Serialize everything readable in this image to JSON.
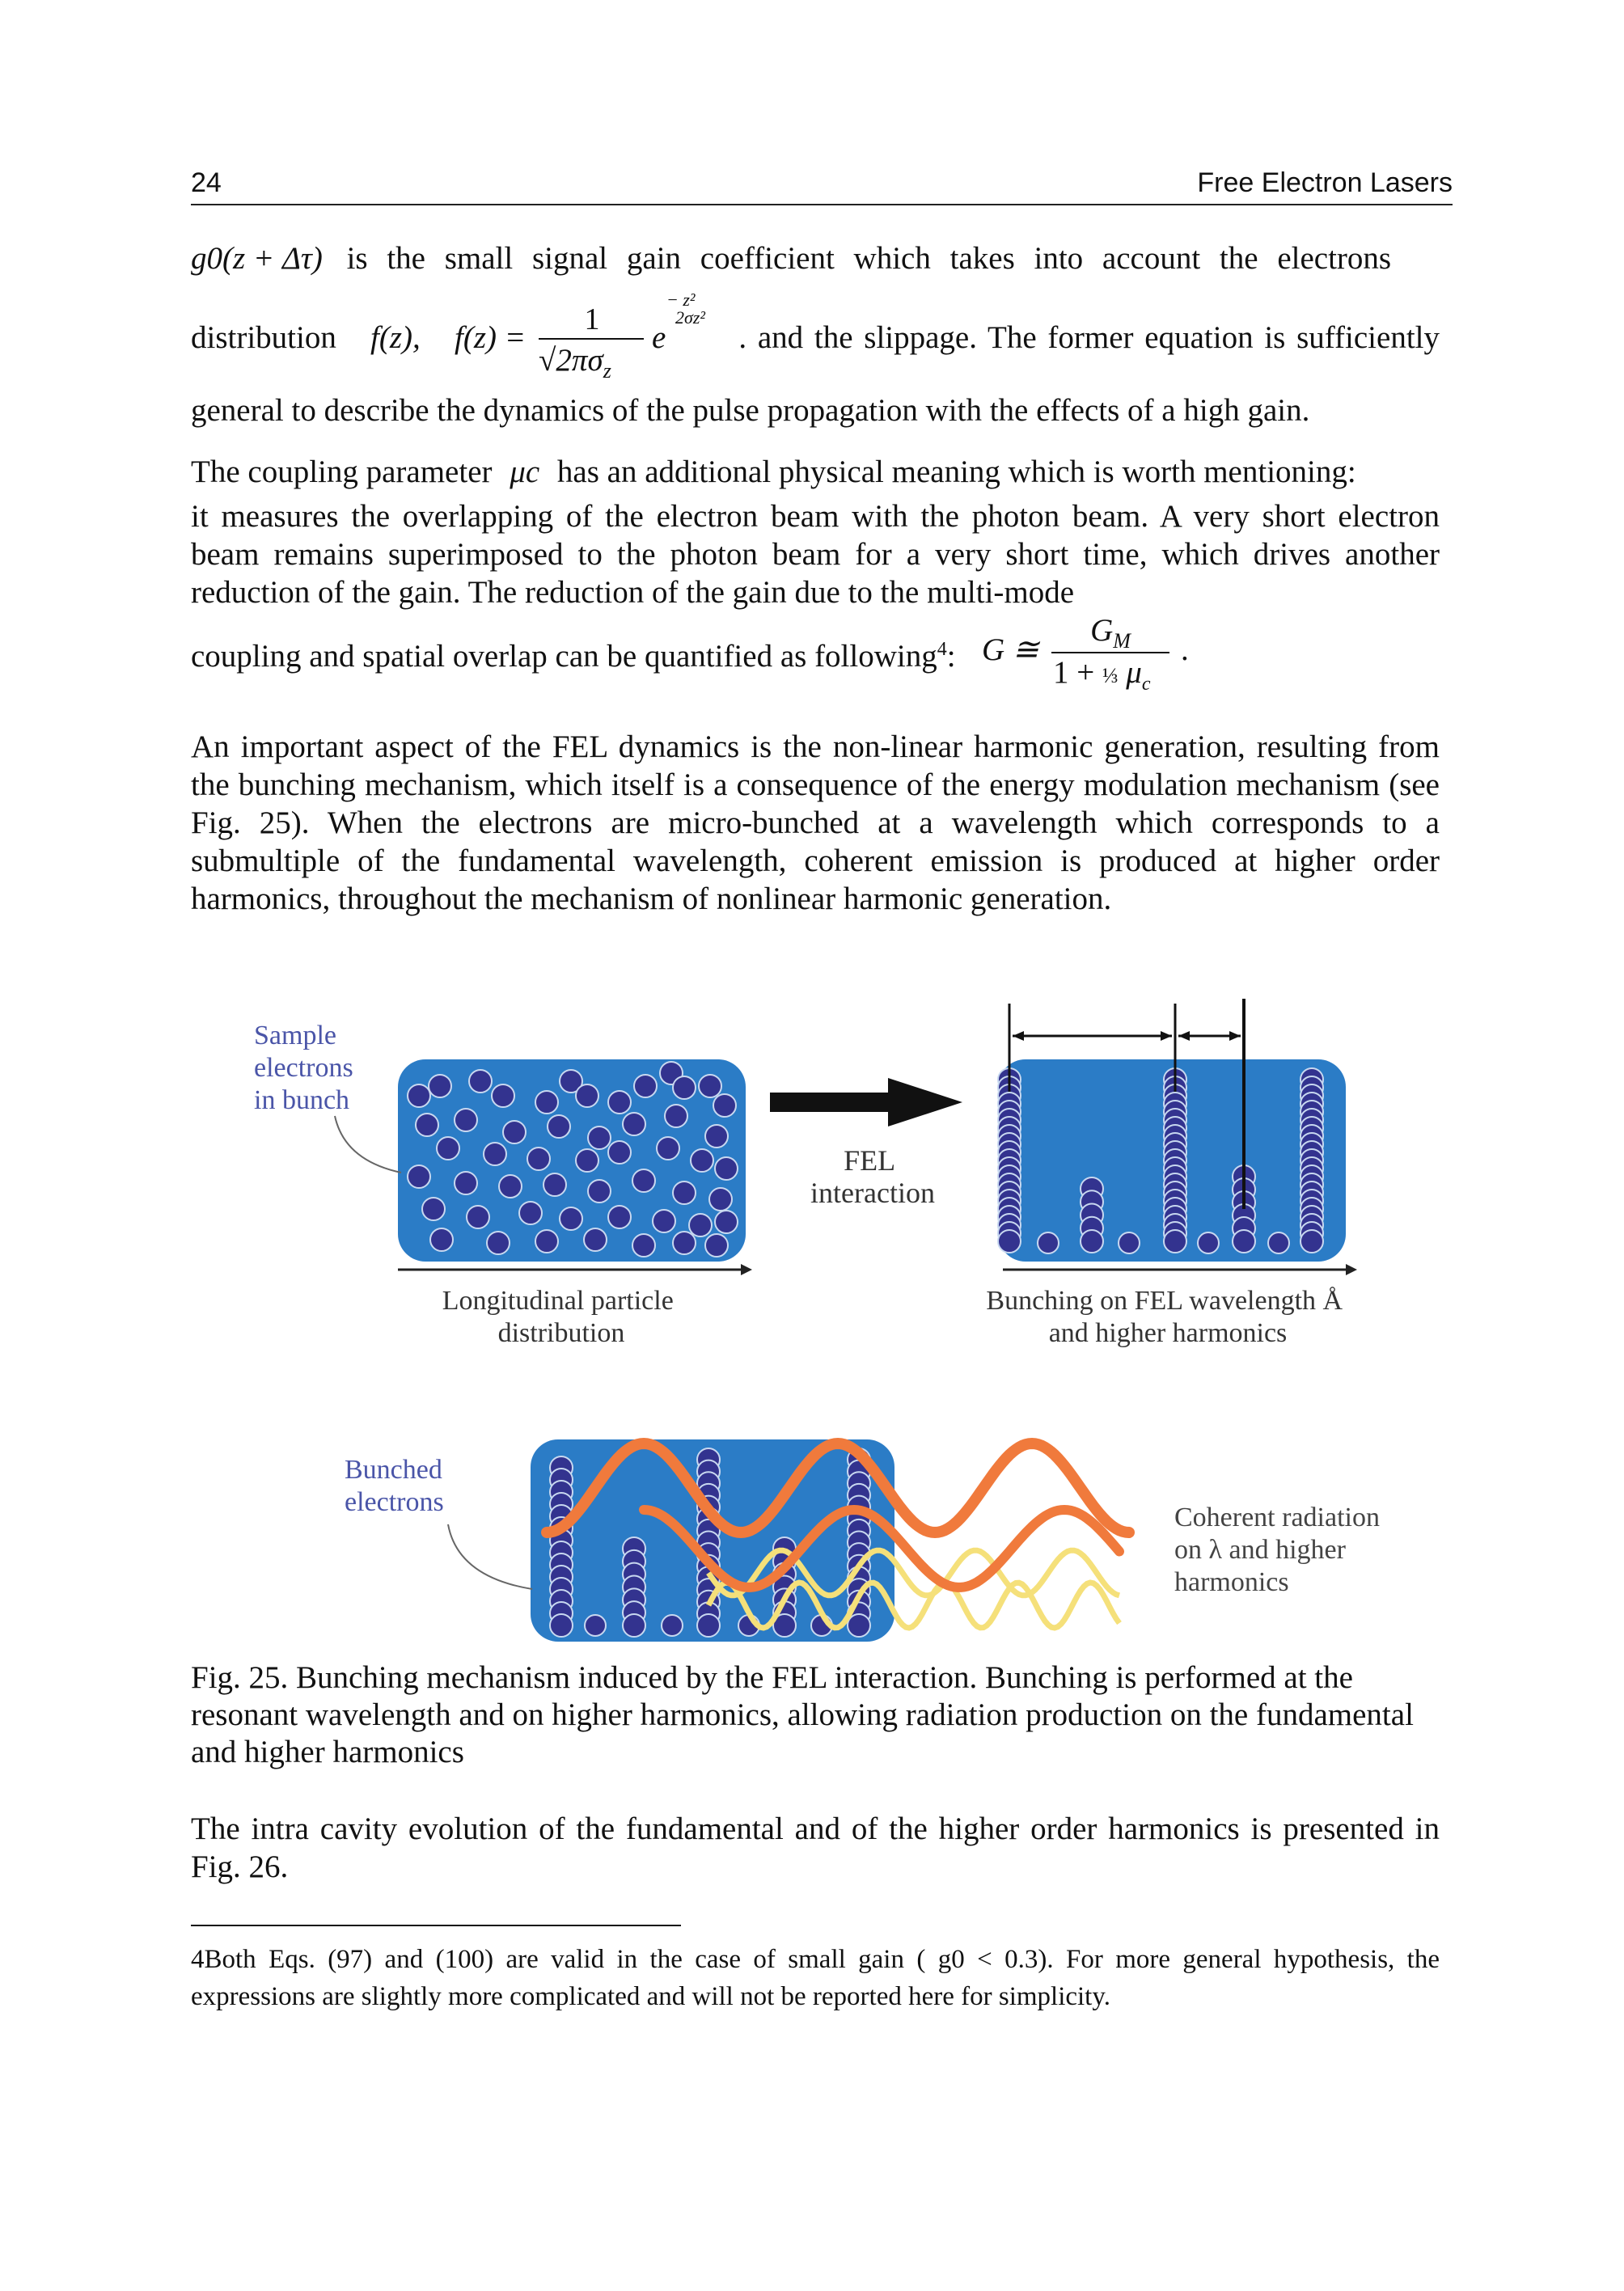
{
  "header": {
    "page_number": "24",
    "running_title": "Free Electron Lasers"
  },
  "para1": {
    "g0_term": "g0(z + Δτ)",
    "line1": "is the small signal gain coefficient which takes into account the electrons",
    "distribution_word": "distribution",
    "fz": "f(z),",
    "formula": "f(z) = 1/(√(2π) σz) · e^(−z²/(2σz²))",
    "after_formula": ". and the slippage. The former equation is sufficiently",
    "line3": "general to describe the dynamics of the pulse propagation with the effects of a high gain."
  },
  "para2": {
    "start": "The coupling parameter",
    "mu": "μc",
    "rest1": "has an additional physical meaning which is worth mentioning:",
    "body": "it measures the overlapping of the electron beam with the photon beam. A very short electron beam remains superimposed to the photon beam for a very short time, which drives another reduction of the gain. The reduction of the gain due to the multi-mode",
    "last_line": "coupling and spatial overlap can be quantified as following",
    "footnote_mark": "4",
    "formula": "G ≅ GM / (1 + ⅓ μc)"
  },
  "para3": "An important aspect of the FEL dynamics is the non-linear harmonic generation, resulting from the bunching mechanism, which itself is a consequence of the energy modulation mechanism (see Fig. 25). When the electrons are micro-bunched at a wavelength which corresponds to a submultiple of the fundamental wavelength, coherent emission is produced at higher order harmonics, throughout the mechanism of nonlinear harmonic generation.",
  "figure": {
    "sample_label": [
      "Sample",
      "electrons",
      "in bunch"
    ],
    "arrow_label": [
      "FEL",
      "interaction"
    ],
    "left_caption": [
      "Longitudinal particle",
      "distribution"
    ],
    "right_caption": [
      "Bunching on FEL wavelength Å",
      "and higher harmonics"
    ],
    "bunched_label": [
      "Bunched",
      "electrons"
    ],
    "coherent_label": [
      "Coherent radiation",
      "on λ and higher",
      "harmonics"
    ],
    "colors": {
      "box": "#2b7cc6",
      "electron": "#33338f",
      "wave_main": "#f07a3c",
      "wave_harm": "#f5e07a",
      "label_blue": "#4a55a8"
    }
  },
  "caption": "Fig. 25. Bunching mechanism induced by the FEL interaction. Bunching is performed at the resonant wavelength and on higher harmonics, allowing radiation production on the fundamental and higher harmonics",
  "para4": "The intra cavity evolution of the fundamental and of the higher order harmonics is presented in Fig. 26.",
  "footnote": "4Both Eqs. (97) and (100) are valid in the case of small gain ( g0 < 0.3). For more general hypothesis, the expressions are slightly more complicated and will not be reported here for simplicity."
}
